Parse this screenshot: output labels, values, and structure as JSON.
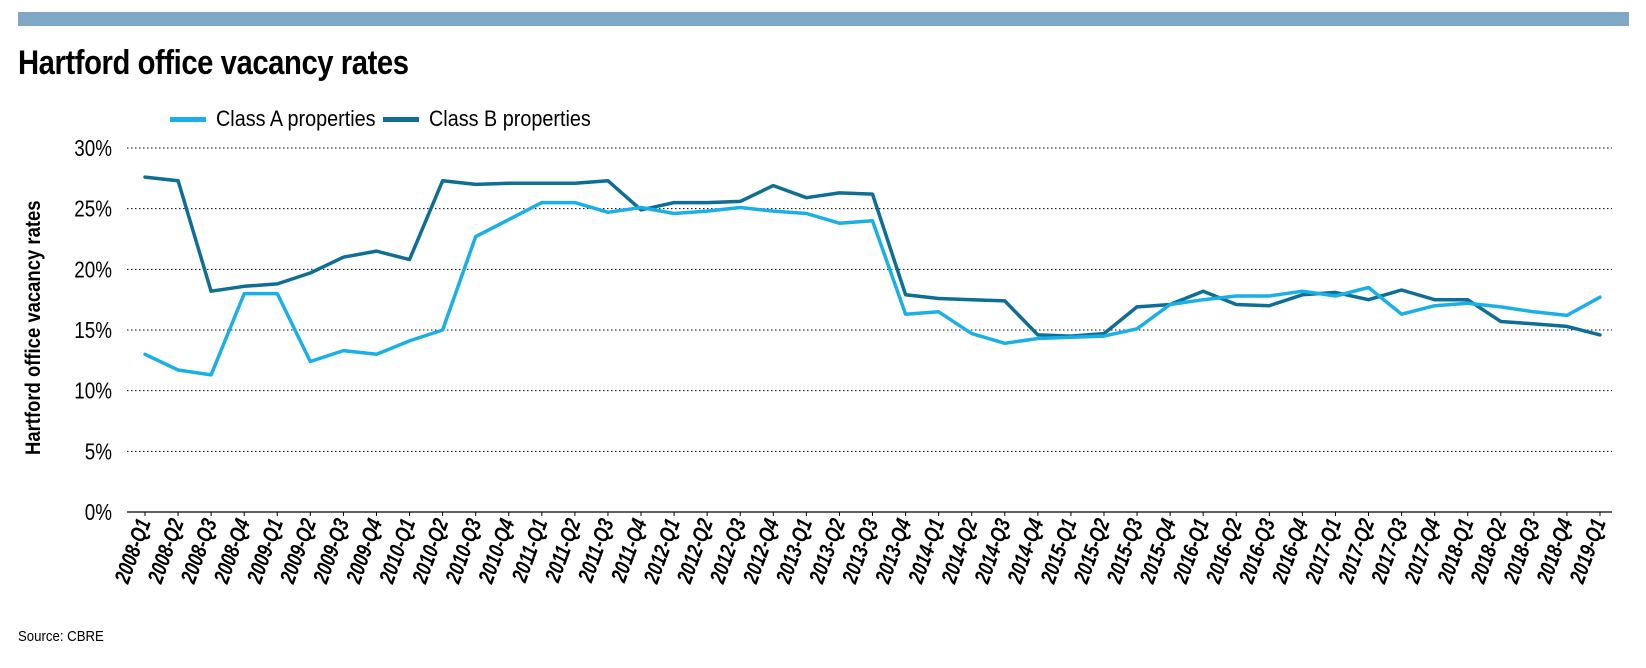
{
  "header": {
    "title": "Hartford office vacancy rates",
    "source": "Source: CBRE"
  },
  "colors": {
    "top_bar": "#7fa8c6",
    "class_a": "#1ab0e6",
    "class_b": "#0e6e93",
    "grid": "#000000"
  },
  "chart_data": {
    "type": "line",
    "title": "Hartford office vacancy rates",
    "ylabel": "Hartford office vacancy rates",
    "xlabel": "",
    "ylim": [
      0,
      30
    ],
    "yticks": [
      0,
      5,
      10,
      15,
      20,
      25,
      30
    ],
    "ytick_labels": [
      "0%",
      "5%",
      "10%",
      "15%",
      "20%",
      "25%",
      "30%"
    ],
    "grid": "horizontal-dotted",
    "legend": "top-left",
    "categories": [
      "2008-Q1",
      "2008-Q2",
      "2008-Q3",
      "2008-Q4",
      "2009-Q1",
      "2009-Q2",
      "2009-Q3",
      "2009-Q4",
      "2010-Q1",
      "2010-Q2",
      "2010-Q3",
      "2010-Q4",
      "2011-Q1",
      "2011-Q2",
      "2011-Q3",
      "2011-Q4",
      "2012-Q1",
      "2012-Q2",
      "2012-Q3",
      "2012-Q4",
      "2013-Q1",
      "2013-Q2",
      "2013-Q3",
      "2013-Q4",
      "2014-Q1",
      "2014-Q2",
      "2014-Q3",
      "2014-Q4",
      "2015-Q1",
      "2015-Q2",
      "2015-Q3",
      "2015-Q4",
      "2016-Q1",
      "2016-Q2",
      "2016-Q3",
      "2016-Q4",
      "2017-Q1",
      "2017-Q2",
      "2017-Q3",
      "2017-Q4",
      "2018-Q1",
      "2018-Q2",
      "2018-Q3",
      "2018-Q4",
      "2019-Q1"
    ],
    "series": [
      {
        "name": "Class A properties",
        "color": "#1ab0e6",
        "values": [
          13.0,
          11.7,
          11.3,
          18.0,
          18.0,
          12.4,
          13.3,
          13.0,
          14.1,
          15.0,
          22.7,
          24.1,
          25.5,
          25.5,
          24.7,
          25.1,
          24.6,
          24.8,
          25.1,
          24.8,
          24.6,
          23.8,
          24.0,
          16.3,
          16.5,
          14.7,
          13.9,
          14.3,
          14.4,
          14.5,
          15.1,
          17.1,
          17.5,
          17.8,
          17.8,
          18.2,
          17.8,
          18.5,
          16.3,
          17.0,
          17.2,
          16.9,
          16.5,
          16.2,
          17.7
        ]
      },
      {
        "name": "Class B properties",
        "color": "#0e6e93",
        "values": [
          27.6,
          27.3,
          18.2,
          18.6,
          18.8,
          19.7,
          21.0,
          21.5,
          20.8,
          27.3,
          27.0,
          27.1,
          27.1,
          27.1,
          27.3,
          24.9,
          25.5,
          25.5,
          25.6,
          26.9,
          25.9,
          26.3,
          26.2,
          17.9,
          17.6,
          17.5,
          17.4,
          14.6,
          14.5,
          14.7,
          16.9,
          17.1,
          18.2,
          17.1,
          17.0,
          17.9,
          18.1,
          17.5,
          18.3,
          17.5,
          17.5,
          15.7,
          15.5,
          15.3,
          14.6
        ]
      }
    ]
  }
}
